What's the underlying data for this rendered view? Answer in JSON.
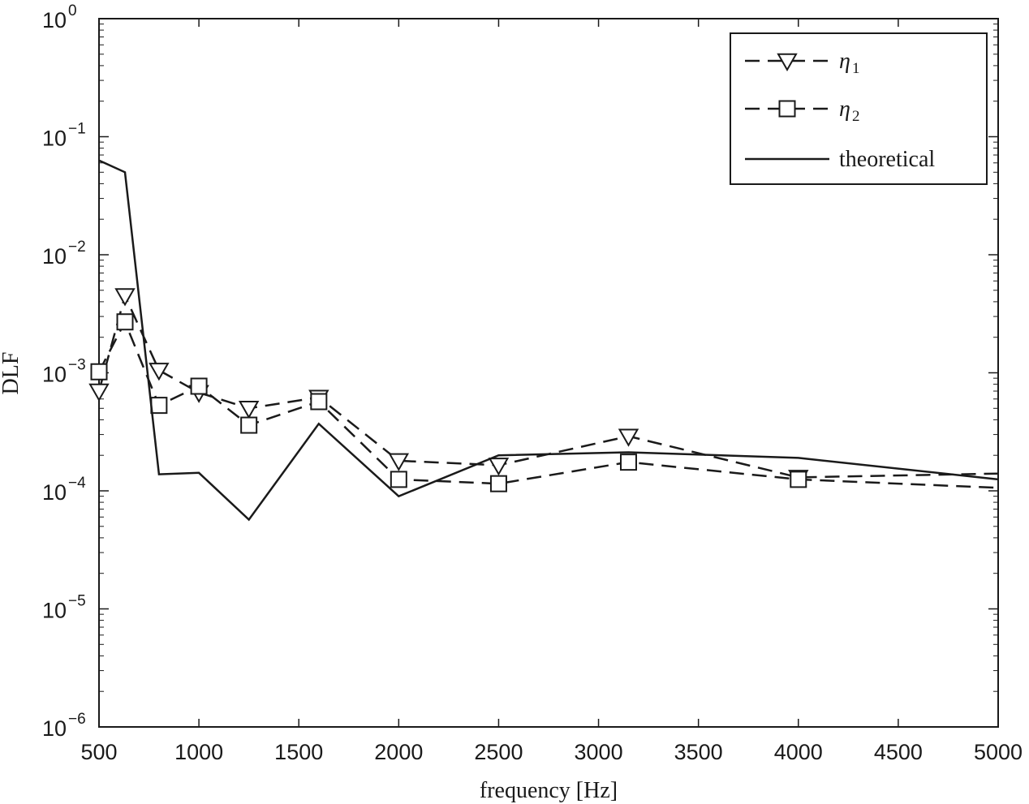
{
  "chart_data": {
    "type": "line",
    "title": "",
    "xlabel": "frequency [Hz]",
    "ylabel": "DLF",
    "xlim": [
      500,
      5000
    ],
    "ylim": [
      1e-06,
      1
    ],
    "yscale": "log",
    "grid": false,
    "legend_position": "top-right",
    "x_ticks": [
      500,
      1000,
      1500,
      2000,
      2500,
      3000,
      3500,
      4000,
      4500,
      5000
    ],
    "x_tick_labels": [
      "500",
      "1000",
      "1500",
      "2000",
      "2500",
      "3000",
      "3500",
      "4000",
      "4500",
      "5000"
    ],
    "y_ticks": [
      {
        "value": 1e-06,
        "base": "10",
        "exp": "−6"
      },
      {
        "value": 1e-05,
        "base": "10",
        "exp": "−5"
      },
      {
        "value": 0.0001,
        "base": "10",
        "exp": "−4"
      },
      {
        "value": 0.001,
        "base": "10",
        "exp": "−3"
      },
      {
        "value": 0.01,
        "base": "10",
        "exp": "−2"
      },
      {
        "value": 0.1,
        "base": "10",
        "exp": "−1"
      },
      {
        "value": 1,
        "base": "10",
        "exp": "0"
      }
    ],
    "series": [
      {
        "name": "η",
        "name_subscript": "1",
        "marker": "triangle-down",
        "line_style": "dashed",
        "color": "#1a1a1a",
        "x": [
          500,
          630,
          800,
          1000,
          1250,
          1600,
          2000,
          2500,
          3150,
          4000,
          5000
        ],
        "y": [
          0.0007,
          0.0045,
          0.00105,
          0.00068,
          0.0005,
          0.00062,
          0.00018,
          0.000165,
          0.00029,
          0.00013,
          0.00014
        ]
      },
      {
        "name": "η",
        "name_subscript": "2",
        "marker": "square",
        "line_style": "dashed",
        "color": "#1a1a1a",
        "x": [
          500,
          630,
          800,
          1000,
          1250,
          1600,
          2000,
          2500,
          3150,
          4000,
          5000
        ],
        "y": [
          0.00102,
          0.0027,
          0.00053,
          0.00077,
          0.00036,
          0.00057,
          0.000125,
          0.000115,
          0.000175,
          0.000125,
          0.000106
        ]
      },
      {
        "name": "theoretical",
        "marker": "none",
        "line_style": "solid",
        "color": "#1a1a1a",
        "x": [
          500,
          630,
          800,
          1000,
          1250,
          1600,
          2000,
          2500,
          3150,
          4000,
          5000
        ],
        "y": [
          0.063,
          0.05,
          0.000138,
          0.000142,
          5.7e-05,
          0.00037,
          9e-05,
          0.0002,
          0.000212,
          0.00019,
          0.000125
        ]
      }
    ]
  }
}
